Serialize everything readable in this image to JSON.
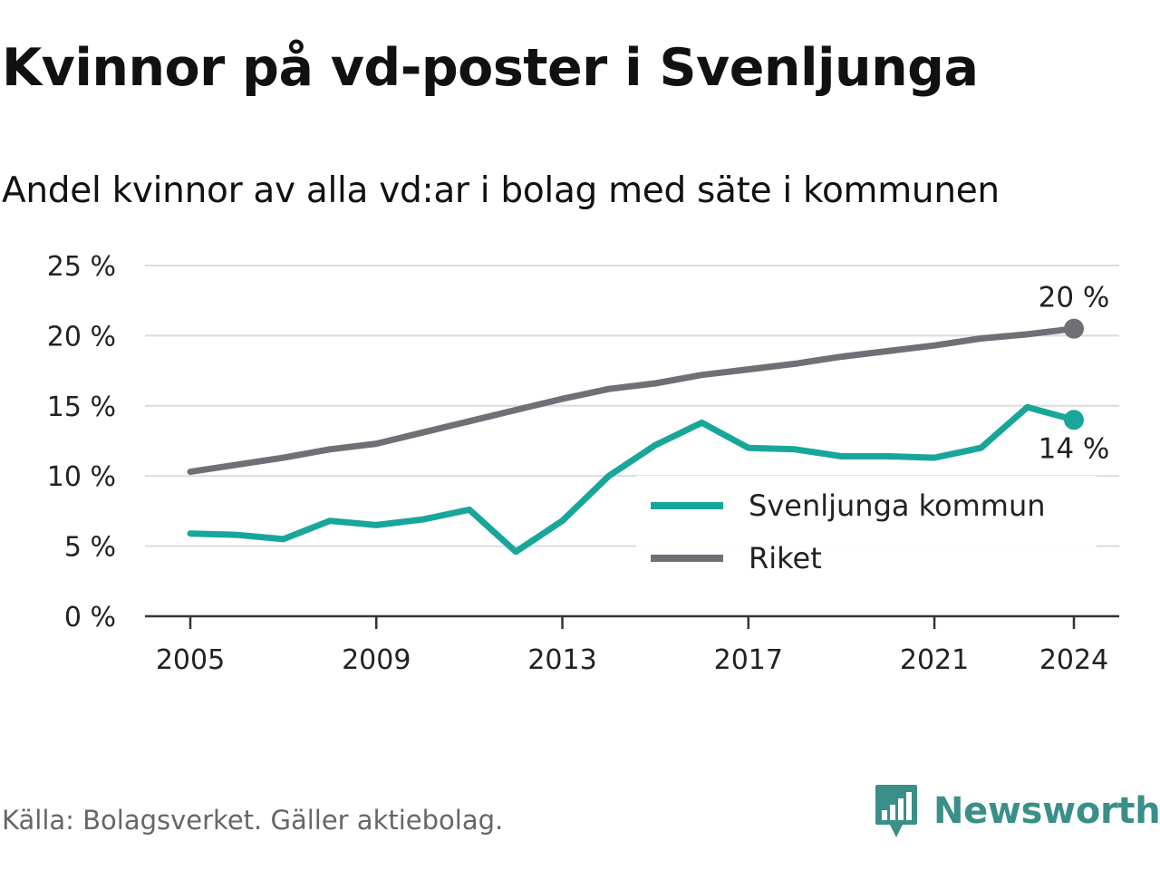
{
  "header": {
    "title": "Kvinnor på vd-poster i Svenljunga",
    "subtitle": "Andel kvinnor av alla vd:ar i bolag med säte i kommunen"
  },
  "footer": {
    "source": "Källa: Bolagsverket. Gäller aktiebolag.",
    "brand": "Newsworthy",
    "brand_icon": "bar-chart-speech-bubble-icon",
    "brand_color": "#3a8f89"
  },
  "chart_data": {
    "type": "line",
    "title": "Kvinnor på vd-poster i Svenljunga",
    "subtitle": "Andel kvinnor av alla vd:ar i bolag med säte i kommunen",
    "x": [
      2005,
      2006,
      2007,
      2008,
      2009,
      2010,
      2011,
      2012,
      2013,
      2014,
      2015,
      2016,
      2017,
      2018,
      2019,
      2020,
      2021,
      2022,
      2023,
      2024
    ],
    "xticks": [
      "2005",
      "2009",
      "2013",
      "2017",
      "2021",
      "2024"
    ],
    "yticks": [
      "0 %",
      "5 %",
      "10 %",
      "15 %",
      "20 %",
      "25 %"
    ],
    "ylim": [
      0,
      25
    ],
    "grid": true,
    "legend_position": "bottom-right",
    "series": [
      {
        "name": "Svenljunga kommun",
        "color": "#19a69a",
        "end_label": "14 %",
        "values": [
          5.9,
          5.8,
          5.5,
          6.8,
          6.5,
          6.9,
          7.6,
          4.6,
          6.8,
          10.0,
          12.2,
          13.8,
          12.0,
          11.9,
          11.4,
          11.4,
          11.3,
          12.0,
          14.9,
          14.0
        ]
      },
      {
        "name": "Riket",
        "color": "#6f6f75",
        "end_label": "20 %",
        "values": [
          10.3,
          10.8,
          11.3,
          11.9,
          12.3,
          13.1,
          13.9,
          14.7,
          15.5,
          16.2,
          16.6,
          17.2,
          17.6,
          18.0,
          18.5,
          18.9,
          19.3,
          19.8,
          20.1,
          20.5
        ]
      }
    ]
  }
}
